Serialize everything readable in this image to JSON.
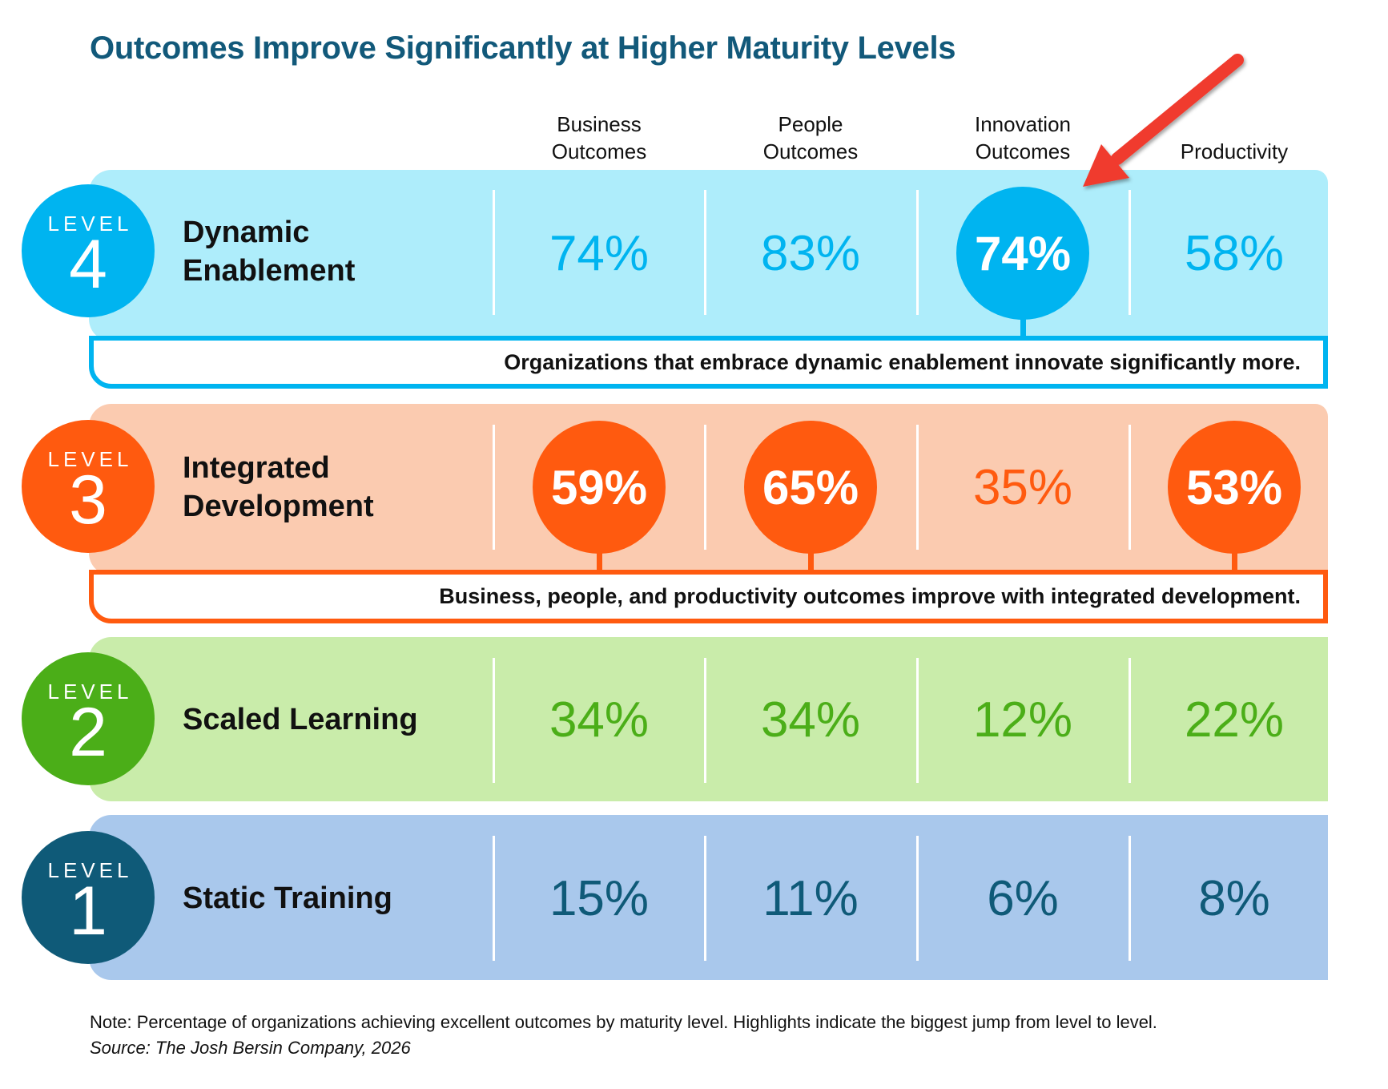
{
  "title": "Outcomes Improve Significantly at Higher Maturity Levels",
  "columns": [
    {
      "line1": "Business",
      "line2": "Outcomes"
    },
    {
      "line1": "People",
      "line2": "Outcomes"
    },
    {
      "line1": "Innovation",
      "line2": "Outcomes"
    },
    {
      "line1": "",
      "line2": "Productivity"
    }
  ],
  "levels": [
    {
      "word": "LEVEL",
      "number": "4",
      "name_line1": "Dynamic",
      "name_line2": "Enablement",
      "values": [
        "74%",
        "83%",
        "74%",
        "58%"
      ],
      "highlights": [
        false,
        false,
        true,
        false
      ],
      "callout": "Organizations that embrace dynamic enablement innovate significantly more.",
      "colors": {
        "accent": "#00b4f0",
        "background": "#aeedfb"
      }
    },
    {
      "word": "LEVEL",
      "number": "3",
      "name_line1": "Integrated",
      "name_line2": "Development",
      "values": [
        "59%",
        "65%",
        "35%",
        "53%"
      ],
      "highlights": [
        true,
        true,
        false,
        true
      ],
      "callout": "Business, people, and productivity outcomes improve with integrated development.",
      "colors": {
        "accent": "#ff5a0f",
        "background": "#fbcbb0"
      }
    },
    {
      "word": "LEVEL",
      "number": "2",
      "name_line1": "Scaled Learning",
      "name_line2": "",
      "values": [
        "34%",
        "34%",
        "12%",
        "22%"
      ],
      "highlights": [
        false,
        false,
        false,
        false
      ],
      "colors": {
        "accent": "#4bae18",
        "background": "#c9ecaa"
      }
    },
    {
      "word": "LEVEL",
      "number": "1",
      "name_line1": "Static Training",
      "name_line2": "",
      "values": [
        "15%",
        "11%",
        "6%",
        "8%"
      ],
      "highlights": [
        false,
        false,
        false,
        false
      ],
      "colors": {
        "accent": "#0f5a78",
        "background": "#a9c8ec"
      }
    }
  ],
  "note": "Note: Percentage of organizations achieving excellent outcomes by maturity level. Highlights indicate the biggest jump from level to level.",
  "source": "Source: The Josh Bersin Company, 2026",
  "arrow_color": "#f03a2e",
  "chart_data": {
    "type": "table",
    "title": "Outcomes Improve Significantly at Higher Maturity Levels",
    "categories": [
      "Business Outcomes",
      "People Outcomes",
      "Innovation Outcomes",
      "Productivity"
    ],
    "unit": "%",
    "series": [
      {
        "name": "Level 4 Dynamic Enablement",
        "values": [
          74,
          83,
          74,
          58
        ]
      },
      {
        "name": "Level 3 Integrated Development",
        "values": [
          59,
          65,
          35,
          53
        ]
      },
      {
        "name": "Level 2 Scaled Learning",
        "values": [
          34,
          34,
          12,
          22
        ]
      },
      {
        "name": "Level 1 Static Training",
        "values": [
          15,
          11,
          6,
          8
        ]
      }
    ],
    "highlighted": [
      {
        "series": "Level 4 Dynamic Enablement",
        "category": "Innovation Outcomes"
      },
      {
        "series": "Level 3 Integrated Development",
        "category": "Business Outcomes"
      },
      {
        "series": "Level 3 Integrated Development",
        "category": "People Outcomes"
      },
      {
        "series": "Level 3 Integrated Development",
        "category": "Productivity"
      }
    ]
  }
}
